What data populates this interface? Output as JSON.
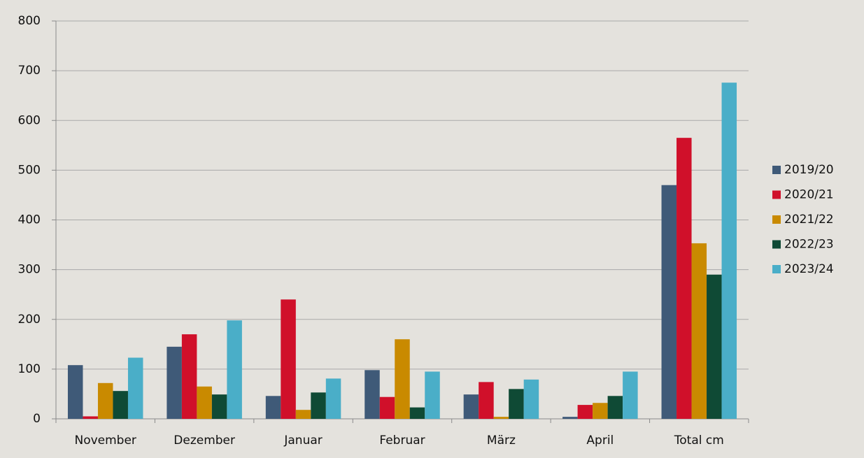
{
  "chart_data": {
    "type": "bar",
    "categories": [
      "November",
      "Dezember",
      "Januar",
      "Februar",
      "März",
      "April",
      "Total cm"
    ],
    "series": [
      {
        "name": "2019/20",
        "color": "#3f5a78",
        "values": [
          108,
          145,
          46,
          98,
          49,
          4,
          470
        ]
      },
      {
        "name": "2020/21",
        "color": "#d0102a",
        "values": [
          5,
          170,
          240,
          44,
          74,
          28,
          565
        ]
      },
      {
        "name": "2021/22",
        "color": "#c98a00",
        "values": [
          72,
          65,
          18,
          160,
          4,
          32,
          353
        ]
      },
      {
        "name": "2022/23",
        "color": "#0f4a35",
        "values": [
          56,
          49,
          53,
          23,
          60,
          46,
          290
        ]
      },
      {
        "name": "2023/24",
        "color": "#4aaec8",
        "values": [
          123,
          198,
          81,
          95,
          79,
          95,
          676
        ]
      }
    ],
    "ylim": [
      0,
      800
    ],
    "yticks": [
      0,
      100,
      200,
      300,
      400,
      500,
      600,
      700,
      800
    ],
    "grid": true,
    "legend": "right"
  }
}
